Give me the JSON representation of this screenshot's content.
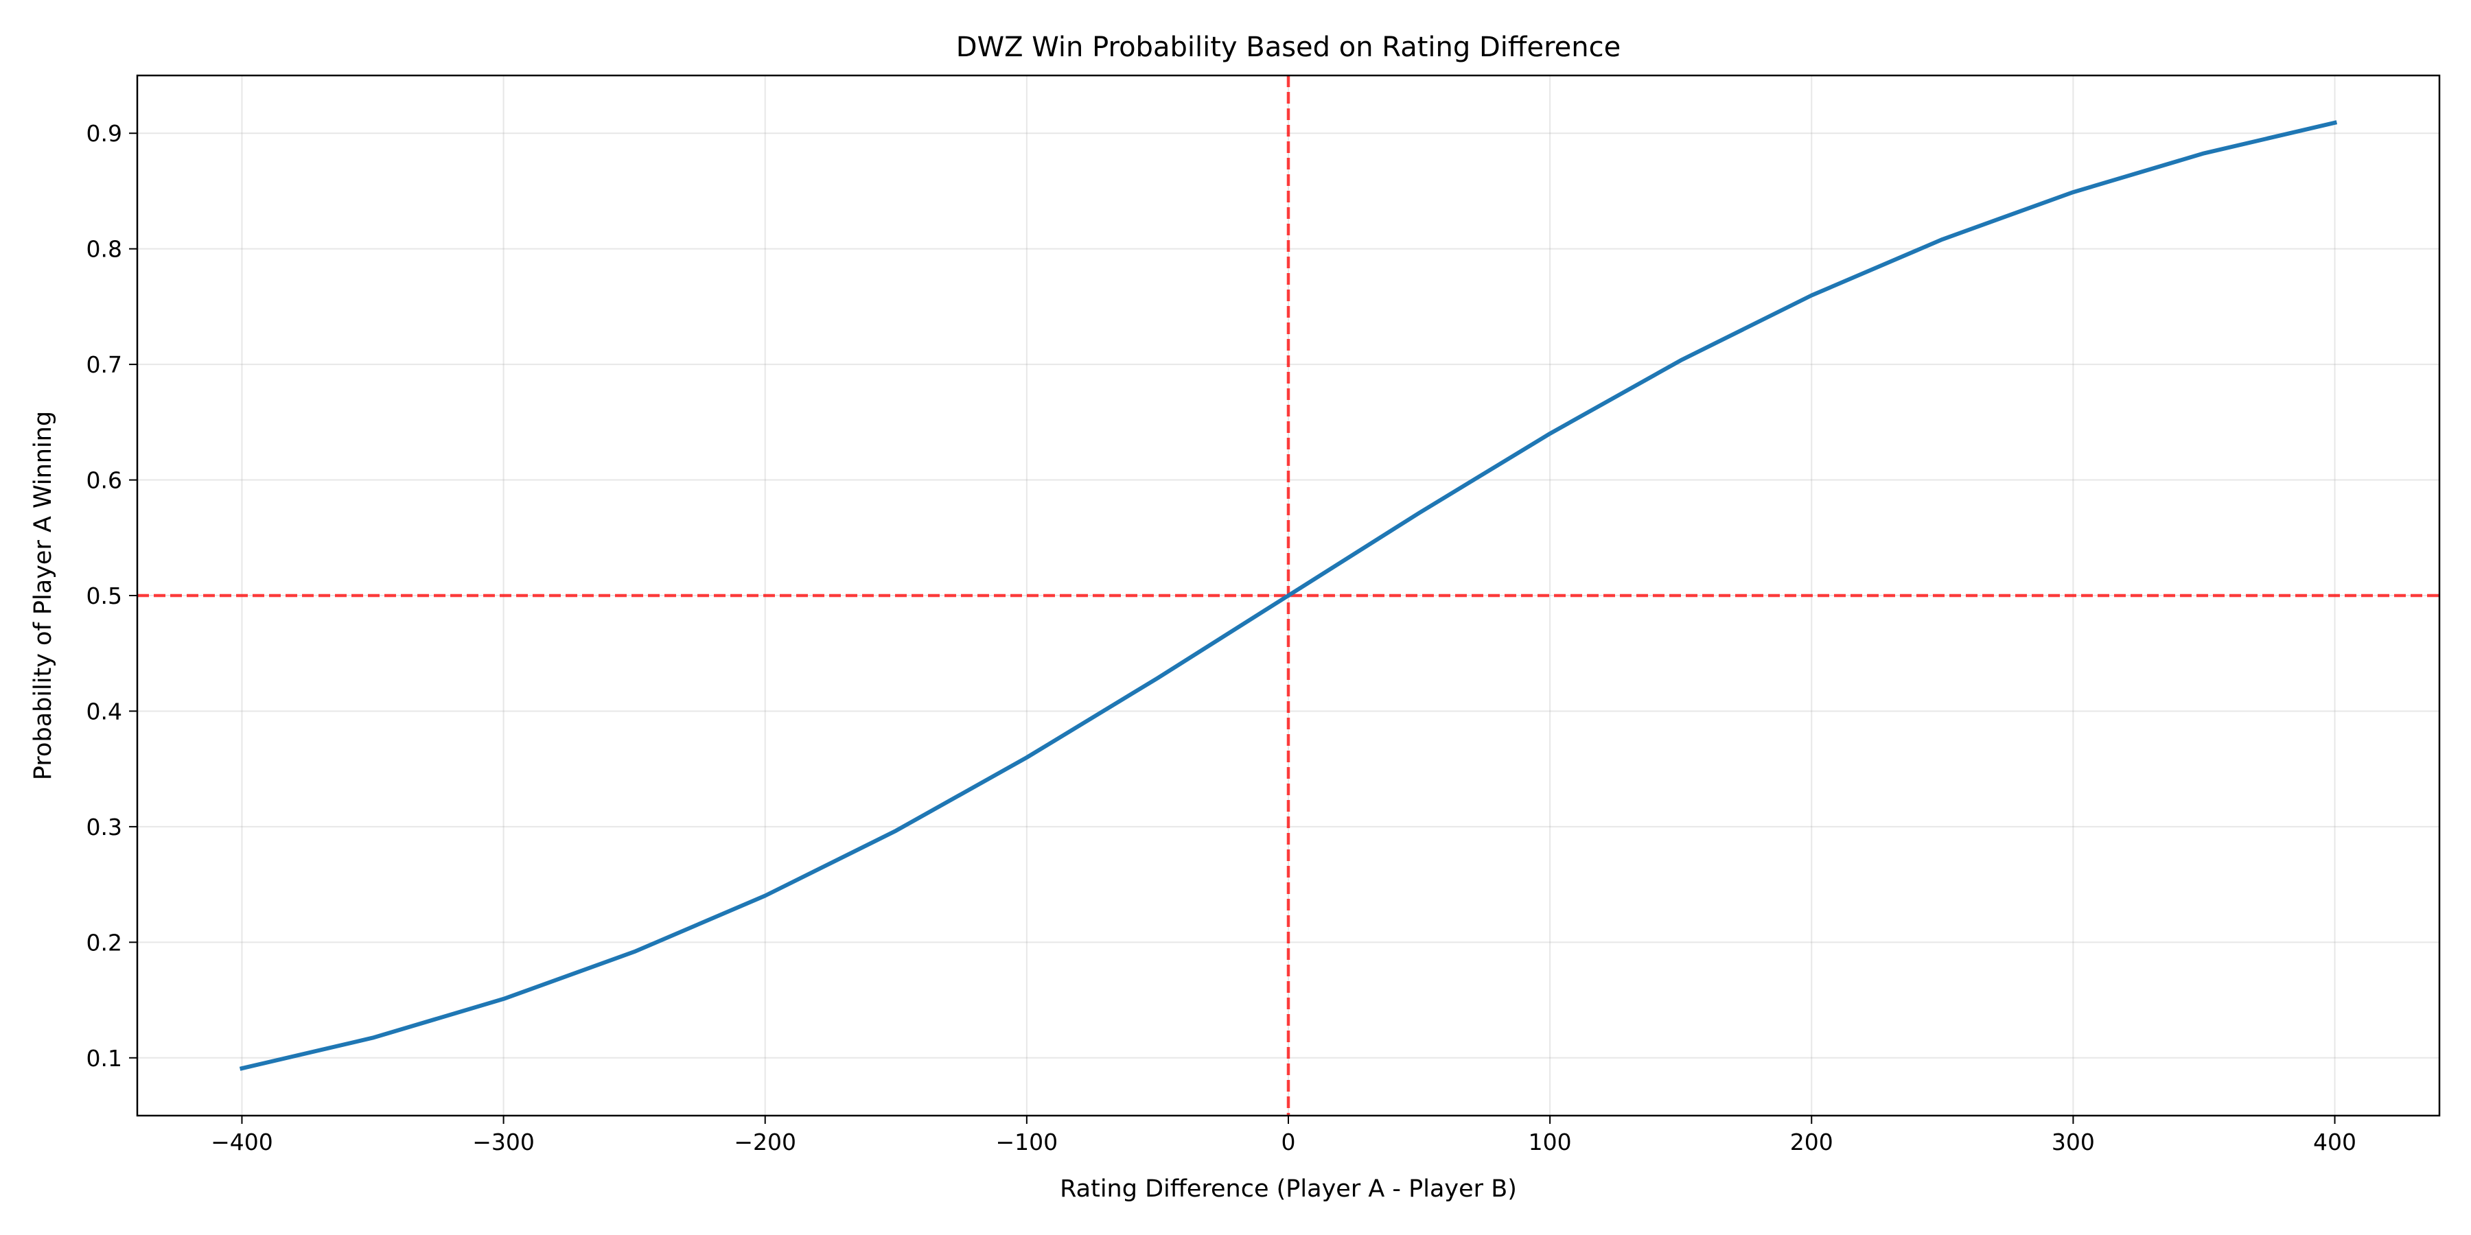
{
  "chart_data": {
    "type": "line",
    "title": "DWZ Win Probability Based on Rating Difference",
    "xlabel": "Rating Difference (Player A - Player B)",
    "ylabel": "Probability of Player A Winning",
    "xlim": [
      -440,
      440
    ],
    "ylim": [
      0.05,
      0.95
    ],
    "xticks": [
      -400,
      -300,
      -200,
      -100,
      0,
      100,
      200,
      300,
      400
    ],
    "xtick_labels": [
      "−400",
      "−300",
      "−200",
      "−100",
      "0",
      "100",
      "200",
      "300",
      "400"
    ],
    "yticks": [
      0.1,
      0.2,
      0.3,
      0.4,
      0.5,
      0.6,
      0.7,
      0.8,
      0.9
    ],
    "ytick_labels": [
      "0.1",
      "0.2",
      "0.3",
      "0.4",
      "0.5",
      "0.6",
      "0.7",
      "0.8",
      "0.9"
    ],
    "grid": true,
    "x": [
      -400,
      -350,
      -300,
      -250,
      -200,
      -150,
      -100,
      -50,
      0,
      50,
      100,
      150,
      200,
      250,
      300,
      350,
      400
    ],
    "series": [
      {
        "values": [
          0.0909,
          0.1173,
          0.151,
          0.1918,
          0.2403,
          0.2965,
          0.3599,
          0.4285,
          0.5,
          0.5715,
          0.6401,
          0.7035,
          0.7597,
          0.8082,
          0.849,
          0.8827,
          0.9091
        ],
        "color": "#1f77b4"
      }
    ],
    "reference_lines": [
      {
        "orientation": "horizontal",
        "value": 0.5,
        "style": "dashed",
        "color": "#ff0000"
      },
      {
        "orientation": "vertical",
        "value": 0,
        "style": "dashed",
        "color": "#ff0000"
      }
    ]
  }
}
